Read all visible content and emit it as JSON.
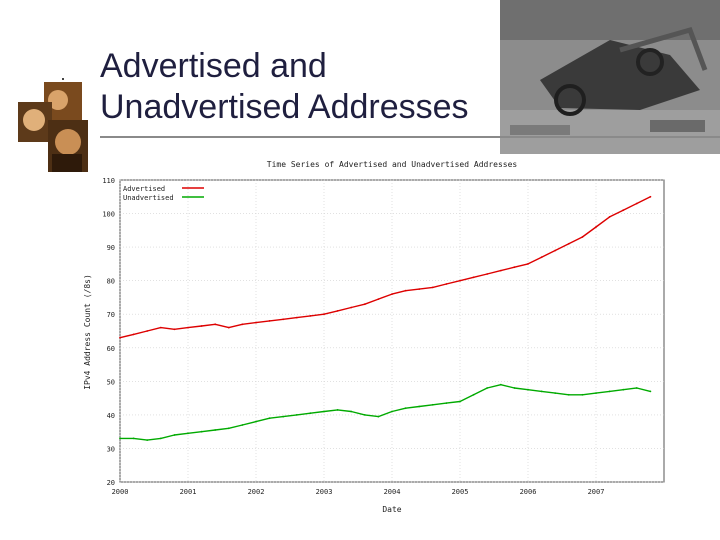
{
  "slide": {
    "title_line1": "Advertised and",
    "title_line2": "Unadvertised Addresses"
  },
  "images": {
    "left": "historical-painting-collage",
    "right": "wrecked-vehicles-rubble-photo"
  },
  "colors": {
    "title": "#1f1f3f",
    "advertised": "#dd0000",
    "unadvertised": "#00aa00",
    "grid": "#cfcfcf"
  },
  "chart_data": {
    "type": "line",
    "title": "Time Series of Advertised and Unadvertised Addresses",
    "xlabel": "Date",
    "ylabel": "IPv4 Address Count (/8s)",
    "xlim": [
      2000,
      2008
    ],
    "ylim": [
      20,
      110
    ],
    "xticks": [
      "2000",
      "2001",
      "2002",
      "2003",
      "2004",
      "2005",
      "2006",
      "2007"
    ],
    "yticks": [
      20,
      30,
      40,
      50,
      60,
      70,
      80,
      90,
      100,
      110
    ],
    "grid": true,
    "legend": "top-left",
    "series": [
      {
        "name": "Advertised",
        "color": "#dd0000",
        "x": [
          2000.0,
          2000.2,
          2000.4,
          2000.6,
          2000.8,
          2001.0,
          2001.2,
          2001.4,
          2001.6,
          2001.8,
          2002.0,
          2002.2,
          2002.4,
          2002.6,
          2002.8,
          2003.0,
          2003.2,
          2003.4,
          2003.6,
          2003.8,
          2004.0,
          2004.2,
          2004.4,
          2004.6,
          2004.8,
          2005.0,
          2005.2,
          2005.4,
          2005.6,
          2005.8,
          2006.0,
          2006.2,
          2006.4,
          2006.6,
          2006.8,
          2007.0,
          2007.2,
          2007.4,
          2007.6,
          2007.8
        ],
        "values": [
          63,
          64,
          65,
          66,
          65.5,
          66,
          66.5,
          67,
          66,
          67,
          67.5,
          68,
          68.5,
          69,
          69.5,
          70,
          71,
          72,
          73,
          74.5,
          76,
          77,
          77.5,
          78,
          79,
          80,
          81,
          82,
          83,
          84,
          85,
          87,
          89,
          91,
          93,
          96,
          99,
          101,
          103,
          105
        ]
      },
      {
        "name": "Unadvertised",
        "color": "#00aa00",
        "x": [
          2000.0,
          2000.2,
          2000.4,
          2000.6,
          2000.8,
          2001.0,
          2001.2,
          2001.4,
          2001.6,
          2001.8,
          2002.0,
          2002.2,
          2002.4,
          2002.6,
          2002.8,
          2003.0,
          2003.2,
          2003.4,
          2003.6,
          2003.8,
          2004.0,
          2004.2,
          2004.4,
          2004.6,
          2004.8,
          2005.0,
          2005.2,
          2005.4,
          2005.6,
          2005.8,
          2006.0,
          2006.2,
          2006.4,
          2006.6,
          2006.8,
          2007.0,
          2007.2,
          2007.4,
          2007.6,
          2007.8
        ],
        "values": [
          33,
          33,
          32.5,
          33,
          34,
          34.5,
          35,
          35.5,
          36,
          37,
          38,
          39,
          39.5,
          40,
          40.5,
          41,
          41.5,
          41,
          40,
          39.5,
          41,
          42,
          42.5,
          43,
          43.5,
          44,
          46,
          48,
          49,
          48,
          47.5,
          47,
          46.5,
          46,
          46,
          46.5,
          47,
          47.5,
          48,
          47
        ]
      }
    ]
  }
}
